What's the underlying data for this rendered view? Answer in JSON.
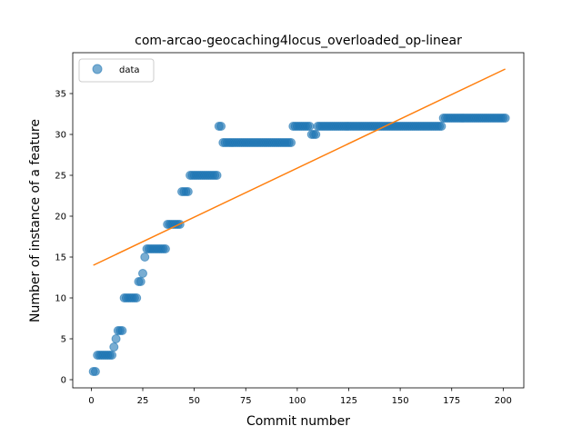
{
  "chart_data": {
    "type": "scatter",
    "title": "com-arcao-geocaching4locus_overloaded_op-linear",
    "xlabel": "Commit number",
    "ylabel": "Number of instance of a feature",
    "xlim": [
      -9,
      210
    ],
    "ylim": [
      -1,
      40
    ],
    "xticks": [
      0,
      25,
      50,
      75,
      100,
      125,
      150,
      175,
      200
    ],
    "yticks": [
      0,
      5,
      10,
      15,
      20,
      25,
      30,
      35
    ],
    "legend": {
      "position": "top-left",
      "entries": [
        "data"
      ]
    },
    "colors": {
      "data": "#1f77b4",
      "fit": "#ff7f0e"
    },
    "series": [
      {
        "name": "data",
        "kind": "scatter",
        "runs": [
          {
            "from": 1,
            "to": 2,
            "y": 1
          },
          {
            "from": 3,
            "to": 10,
            "y": 3
          },
          {
            "from": 11,
            "to": 11,
            "y": 4
          },
          {
            "from": 12,
            "to": 12,
            "y": 5
          },
          {
            "from": 13,
            "to": 15,
            "y": 6
          },
          {
            "from": 16,
            "to": 22,
            "y": 10
          },
          {
            "from": 23,
            "to": 24,
            "y": 12
          },
          {
            "from": 25,
            "to": 25,
            "y": 13
          },
          {
            "from": 26,
            "to": 26,
            "y": 15
          },
          {
            "from": 27,
            "to": 36,
            "y": 16
          },
          {
            "from": 37,
            "to": 43,
            "y": 19
          },
          {
            "from": 44,
            "to": 47,
            "y": 23
          },
          {
            "from": 48,
            "to": 61,
            "y": 25
          },
          {
            "from": 62,
            "to": 63,
            "y": 31
          },
          {
            "from": 64,
            "to": 97,
            "y": 29
          },
          {
            "from": 98,
            "to": 106,
            "y": 31
          },
          {
            "from": 107,
            "to": 109,
            "y": 30
          },
          {
            "from": 110,
            "to": 170,
            "y": 31
          },
          {
            "from": 171,
            "to": 201,
            "y": 32
          }
        ]
      },
      {
        "name": "fit",
        "kind": "line",
        "x": [
          1,
          201
        ],
        "y": [
          14,
          38
        ]
      }
    ]
  }
}
